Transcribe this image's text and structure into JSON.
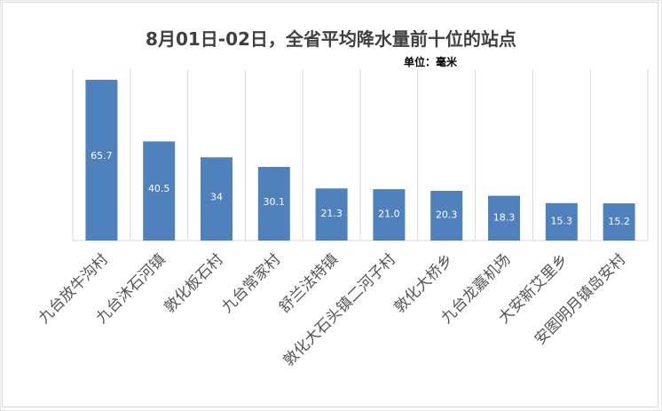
{
  "chart_data": {
    "type": "bar",
    "title": "8月01日-02日，全省平均降水量前十位的站点",
    "subtitle": "单位：毫米",
    "categories": [
      "九台放牛沟村",
      "九台沐石河镇",
      "敦化板石村",
      "九台常家村",
      "舒兰法特镇",
      "敦化大石头镇二河子村",
      "敦化大桥乡",
      "九台龙嘉机场",
      "大安新艾里乡",
      "安图明月镇岛安村"
    ],
    "values": [
      65.7,
      40.5,
      34,
      30.1,
      21.3,
      21.0,
      20.3,
      18.3,
      15.3,
      15.2
    ],
    "value_labels": [
      "65.7",
      "40.5",
      "34",
      "30.1",
      "21.3",
      "21.0",
      "20.3",
      "18.3",
      "15.3",
      "15.2"
    ],
    "ylim": [
      0,
      70
    ],
    "grid": "vertical",
    "bar_color": "#4f81bd",
    "grid_color": "#d9d9d9"
  }
}
